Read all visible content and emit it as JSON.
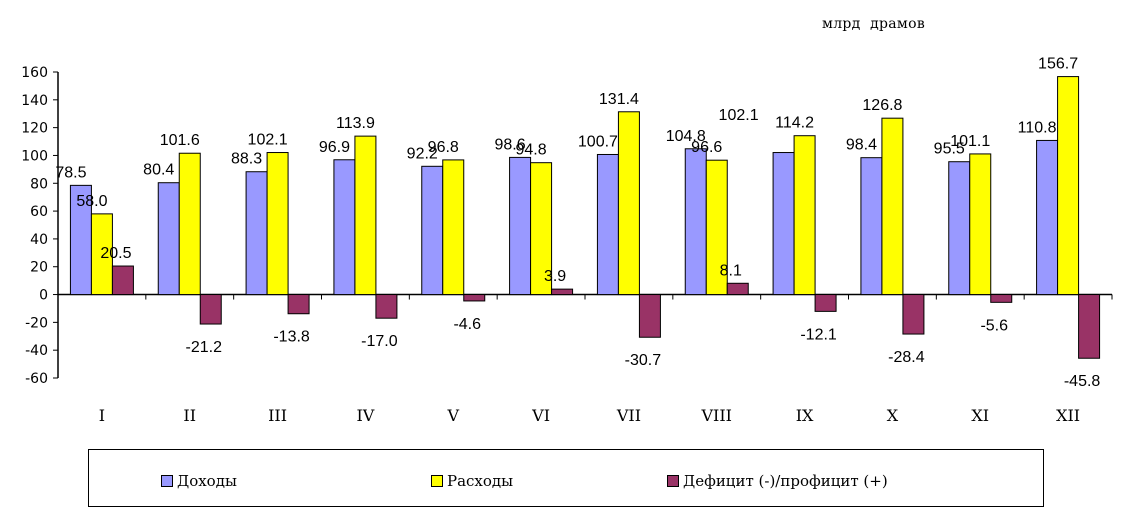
{
  "unit_label": "млрд  драмов",
  "colors": {
    "income": "#9999ff",
    "expense": "#ffff00",
    "balance": "#993366"
  },
  "legend": [
    {
      "label": "Доходы",
      "color": "#9999ff"
    },
    {
      "label": "Расходы",
      "color": "#ffff00"
    },
    {
      "label": "Дефицит (-)/профицит (+)",
      "color": "#993366"
    }
  ],
  "chart_data": {
    "type": "bar",
    "categories": [
      "I",
      "II",
      "III",
      "IV",
      "V",
      "VI",
      "VII",
      "VIII",
      "IX",
      "X",
      "XI",
      "XII"
    ],
    "series": [
      {
        "name": "Доходы",
        "values": [
          78.5,
          80.4,
          88.3,
          96.9,
          92.2,
          98.6,
          100.7,
          104.8,
          102.1,
          98.4,
          95.5,
          110.8
        ]
      },
      {
        "name": "Расходы",
        "values": [
          58.0,
          101.6,
          102.1,
          113.9,
          96.8,
          94.8,
          131.4,
          96.6,
          114.2,
          126.8,
          101.1,
          156.7
        ]
      },
      {
        "name": "Дефицит (-)/профицит (+)",
        "values": [
          20.5,
          -21.2,
          -13.8,
          -17.0,
          -4.6,
          3.9,
          -30.7,
          8.1,
          -12.1,
          -28.4,
          -5.6,
          -45.8
        ]
      }
    ],
    "data_labels": [
      [
        "78.5",
        "80.4",
        "88.3",
        "96.9",
        "92.2",
        "98.6",
        "100.7",
        "104.8",
        "",
        "98.4",
        "95.5",
        "110.8"
      ],
      [
        "58.0",
        "101.6",
        "102.1",
        "113.9",
        "96.8",
        "94.8",
        "131.4",
        "96.6",
        "114.2",
        "126.8",
        "101.1",
        "156.7"
      ],
      [
        "20.5",
        "-21.2",
        "-13.8",
        "-17.0",
        "-4.6",
        "3.9",
        "-30.7",
        "8.1",
        "-12.1",
        "-28.4",
        "-5.6",
        "-45.8"
      ]
    ],
    "extra_labels": [
      "102.1"
    ],
    "ylim": [
      -60,
      160
    ],
    "yticks": [
      "160",
      "140",
      "120",
      "100",
      "80",
      "60",
      "40",
      "20",
      "0",
      "-20",
      "-40",
      "-60"
    ],
    "grid": false,
    "legend_position": "bottom",
    "title": "",
    "xlabel": "",
    "ylabel": ""
  }
}
